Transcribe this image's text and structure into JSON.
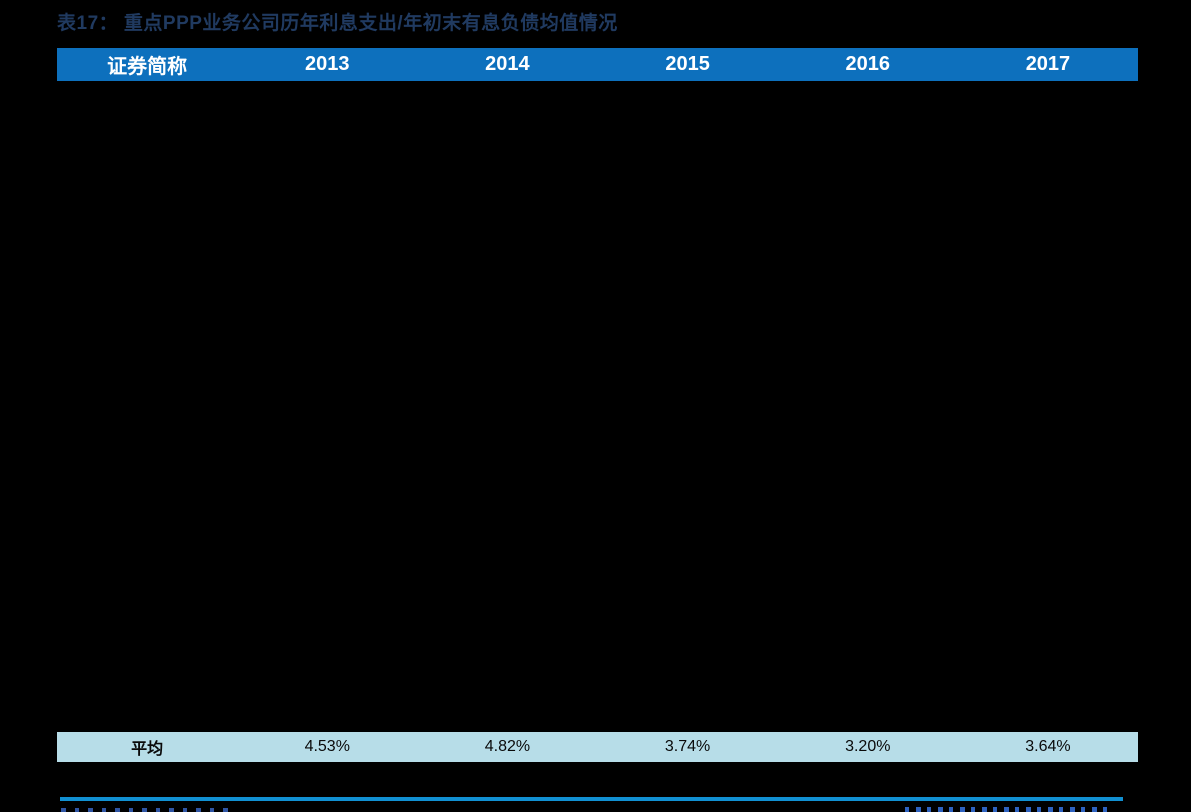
{
  "page": {
    "background_color": "#000000"
  },
  "table": {
    "title": "表17： 重点PPP业务公司历年利息支出/年初末有息负债均值情况",
    "title_color": "#203A60",
    "header": {
      "background_color": "#0D70BD",
      "text_color": "#FFFFFF",
      "columns": [
        "证券简称",
        "2013",
        "2014",
        "2015",
        "2016",
        "2017"
      ]
    },
    "average_row": {
      "background_color": "#B7DDE8",
      "label": "平均",
      "values": [
        "4.53%",
        "4.82%",
        "3.74%",
        "3.20%",
        "3.64%"
      ]
    }
  },
  "divider_color": "#1190D2",
  "chart_data": {
    "type": "table",
    "title": "表17： 重点PPP业务公司历年利息支出/年初末有息负债均值情况",
    "columns": [
      "证券简称",
      "2013",
      "2014",
      "2015",
      "2016",
      "2017"
    ],
    "rows": [
      [
        "平均",
        "4.53%",
        "4.82%",
        "3.74%",
        "3.20%",
        "3.64%"
      ]
    ],
    "notes_layout": "table body rows between header and average row are obscured (solid black region)"
  }
}
